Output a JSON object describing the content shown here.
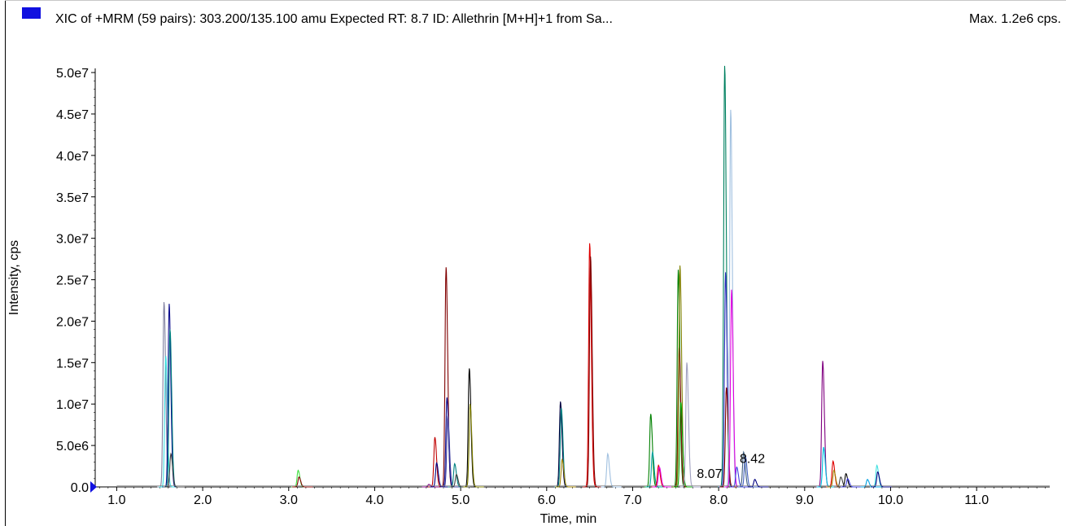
{
  "header": {
    "title": "XIC of +MRM (59 pairs): 303.200/135.100 amu Expected RT: 8.7 ID: Allethrin [M+H]+1 from Sa...",
    "max_label": "Max. 1.2e6 cps.",
    "legend_color": "#1010e0"
  },
  "chart_data": {
    "type": "line",
    "xlabel": "Time, min",
    "ylabel": "Intensity, cps",
    "xlim": [
      0.75,
      11.85
    ],
    "ylim": [
      0,
      50500000
    ],
    "x_ticks": [
      1.0,
      2.0,
      3.0,
      4.0,
      5.0,
      6.0,
      7.0,
      8.0,
      9.0,
      10.0,
      11.0
    ],
    "x_tick_labels": [
      "1.0",
      "2.0",
      "3.0",
      "4.0",
      "5.0",
      "6.0",
      "7.0",
      "8.0",
      "9.0",
      "10.0",
      "11.0"
    ],
    "y_ticks": [
      0,
      5000000,
      10000000,
      15000000,
      20000000,
      25000000,
      30000000,
      35000000,
      40000000,
      45000000,
      50000000
    ],
    "y_tick_labels": [
      "0.0",
      "5.0e6",
      "1.0e7",
      "1.5e7",
      "2.0e7",
      "2.5e7",
      "3.0e7",
      "3.5e7",
      "4.0e7",
      "4.5e7",
      "5.0e7"
    ],
    "annotations": [
      {
        "text": "8.07",
        "x": 8.07,
        "y": 500000
      },
      {
        "text": "8.42",
        "x": 8.42,
        "y": 2300000
      }
    ],
    "peaks": [
      {
        "rt": 1.55,
        "height": 22300000,
        "color": "#8080a0"
      },
      {
        "rt": 1.57,
        "height": 15800000,
        "color": "#40e0e0"
      },
      {
        "rt": 1.61,
        "height": 22100000,
        "color": "#101090"
      },
      {
        "rt": 1.62,
        "height": 19000000,
        "color": "#008080"
      },
      {
        "rt": 1.63,
        "height": 4000000,
        "color": "#404040"
      },
      {
        "rt": 3.11,
        "height": 2000000,
        "color": "#40e040"
      },
      {
        "rt": 3.12,
        "height": 1200000,
        "color": "#800000"
      },
      {
        "rt": 4.63,
        "height": 300000,
        "color": "#800080"
      },
      {
        "rt": 4.7,
        "height": 6000000,
        "color": "#c00000"
      },
      {
        "rt": 4.72,
        "height": 2900000,
        "color": "#000080"
      },
      {
        "rt": 4.83,
        "height": 26500000,
        "color": "#800000"
      },
      {
        "rt": 4.84,
        "height": 10800000,
        "color": "#101090"
      },
      {
        "rt": 4.85,
        "height": 8600000,
        "color": "#4040a0"
      },
      {
        "rt": 4.93,
        "height": 2800000,
        "color": "#008080"
      },
      {
        "rt": 4.95,
        "height": 1500000,
        "color": "#404040"
      },
      {
        "rt": 5.1,
        "height": 14300000,
        "color": "#000000"
      },
      {
        "rt": 5.11,
        "height": 10000000,
        "color": "#808000"
      },
      {
        "rt": 6.16,
        "height": 10300000,
        "color": "#000040"
      },
      {
        "rt": 6.17,
        "height": 9500000,
        "color": "#008080"
      },
      {
        "rt": 6.18,
        "height": 3300000,
        "color": "#a08000"
      },
      {
        "rt": 6.5,
        "height": 29400000,
        "color": "#e00000"
      },
      {
        "rt": 6.51,
        "height": 27800000,
        "color": "#800000"
      },
      {
        "rt": 6.71,
        "height": 4000000,
        "color": "#a0c0e0"
      },
      {
        "rt": 7.21,
        "height": 8800000,
        "color": "#008000"
      },
      {
        "rt": 7.23,
        "height": 4200000,
        "color": "#00a0a0"
      },
      {
        "rt": 7.3,
        "height": 2600000,
        "color": "#e00000"
      },
      {
        "rt": 7.31,
        "height": 2400000,
        "color": "#e000e0"
      },
      {
        "rt": 7.53,
        "height": 26200000,
        "color": "#008000"
      },
      {
        "rt": 7.54,
        "height": 16800000,
        "color": "#800000"
      },
      {
        "rt": 7.55,
        "height": 26700000,
        "color": "#808000"
      },
      {
        "rt": 7.56,
        "height": 10200000,
        "color": "#00a000"
      },
      {
        "rt": 7.63,
        "height": 15000000,
        "color": "#a0a0c0"
      },
      {
        "rt": 8.07,
        "height": 50800000,
        "color": "#008060"
      },
      {
        "rt": 8.08,
        "height": 25900000,
        "color": "#3030c0"
      },
      {
        "rt": 8.09,
        "height": 12000000,
        "color": "#800000"
      },
      {
        "rt": 8.14,
        "height": 45500000,
        "color": "#a0c0e0"
      },
      {
        "rt": 8.15,
        "height": 23800000,
        "color": "#e000e0"
      },
      {
        "rt": 8.21,
        "height": 2400000,
        "color": "#4040e0"
      },
      {
        "rt": 8.29,
        "height": 4200000,
        "color": "#406080"
      },
      {
        "rt": 8.31,
        "height": 3700000,
        "color": "#4060c0"
      },
      {
        "rt": 8.42,
        "height": 900000,
        "color": "#000080"
      },
      {
        "rt": 9.21,
        "height": 15200000,
        "color": "#800080"
      },
      {
        "rt": 9.22,
        "height": 4800000,
        "color": "#00c0e0"
      },
      {
        "rt": 9.33,
        "height": 3100000,
        "color": "#e00000"
      },
      {
        "rt": 9.34,
        "height": 2000000,
        "color": "#a08000"
      },
      {
        "rt": 9.42,
        "height": 1200000,
        "color": "#404040"
      },
      {
        "rt": 9.48,
        "height": 1600000,
        "color": "#000000"
      },
      {
        "rt": 9.5,
        "height": 1000000,
        "color": "#4040e0"
      },
      {
        "rt": 9.73,
        "height": 900000,
        "color": "#00a0e0"
      },
      {
        "rt": 9.84,
        "height": 2600000,
        "color": "#40e0e0"
      },
      {
        "rt": 9.85,
        "height": 1800000,
        "color": "#000080"
      }
    ]
  }
}
